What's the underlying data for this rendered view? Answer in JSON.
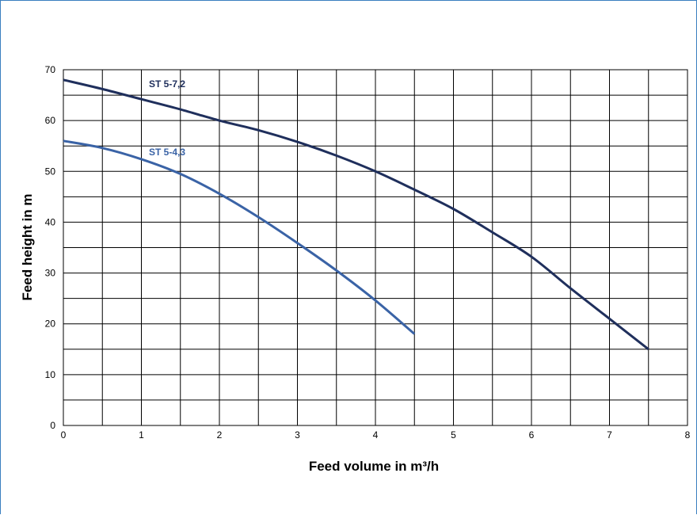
{
  "chart_data": {
    "type": "line",
    "xlabel": "Feed volume in m³/h",
    "ylabel": "Feed height in m",
    "xlim": [
      0,
      8
    ],
    "ylim": [
      0,
      70
    ],
    "x_ticks": [
      0,
      1,
      2,
      3,
      4,
      5,
      6,
      7,
      8
    ],
    "y_ticks": [
      0,
      10,
      20,
      30,
      40,
      50,
      60,
      70
    ],
    "x_minor_step": 0.5,
    "y_minor_step": 5,
    "grid": true,
    "legend": "inline labels",
    "series": [
      {
        "name": "ST 5-7,2",
        "color": "#1f2f5c",
        "x": [
          0,
          0.5,
          1,
          1.5,
          2,
          2.5,
          3,
          3.5,
          4,
          4.5,
          5,
          5.5,
          6,
          6.5,
          7,
          7.5
        ],
        "y": [
          68,
          66.2,
          64.2,
          62.2,
          60,
          58.1,
          55.8,
          53.1,
          50,
          46.4,
          42.6,
          38,
          33.2,
          27,
          21,
          15
        ]
      },
      {
        "name": "ST 5-4,3",
        "color": "#3a63a6",
        "x": [
          0,
          0.5,
          1,
          1.5,
          2,
          2.5,
          3,
          3.5,
          4,
          4.5
        ],
        "y": [
          56,
          54.6,
          52.4,
          49.5,
          45.6,
          41,
          35.9,
          30.5,
          24.6,
          18
        ]
      }
    ]
  }
}
